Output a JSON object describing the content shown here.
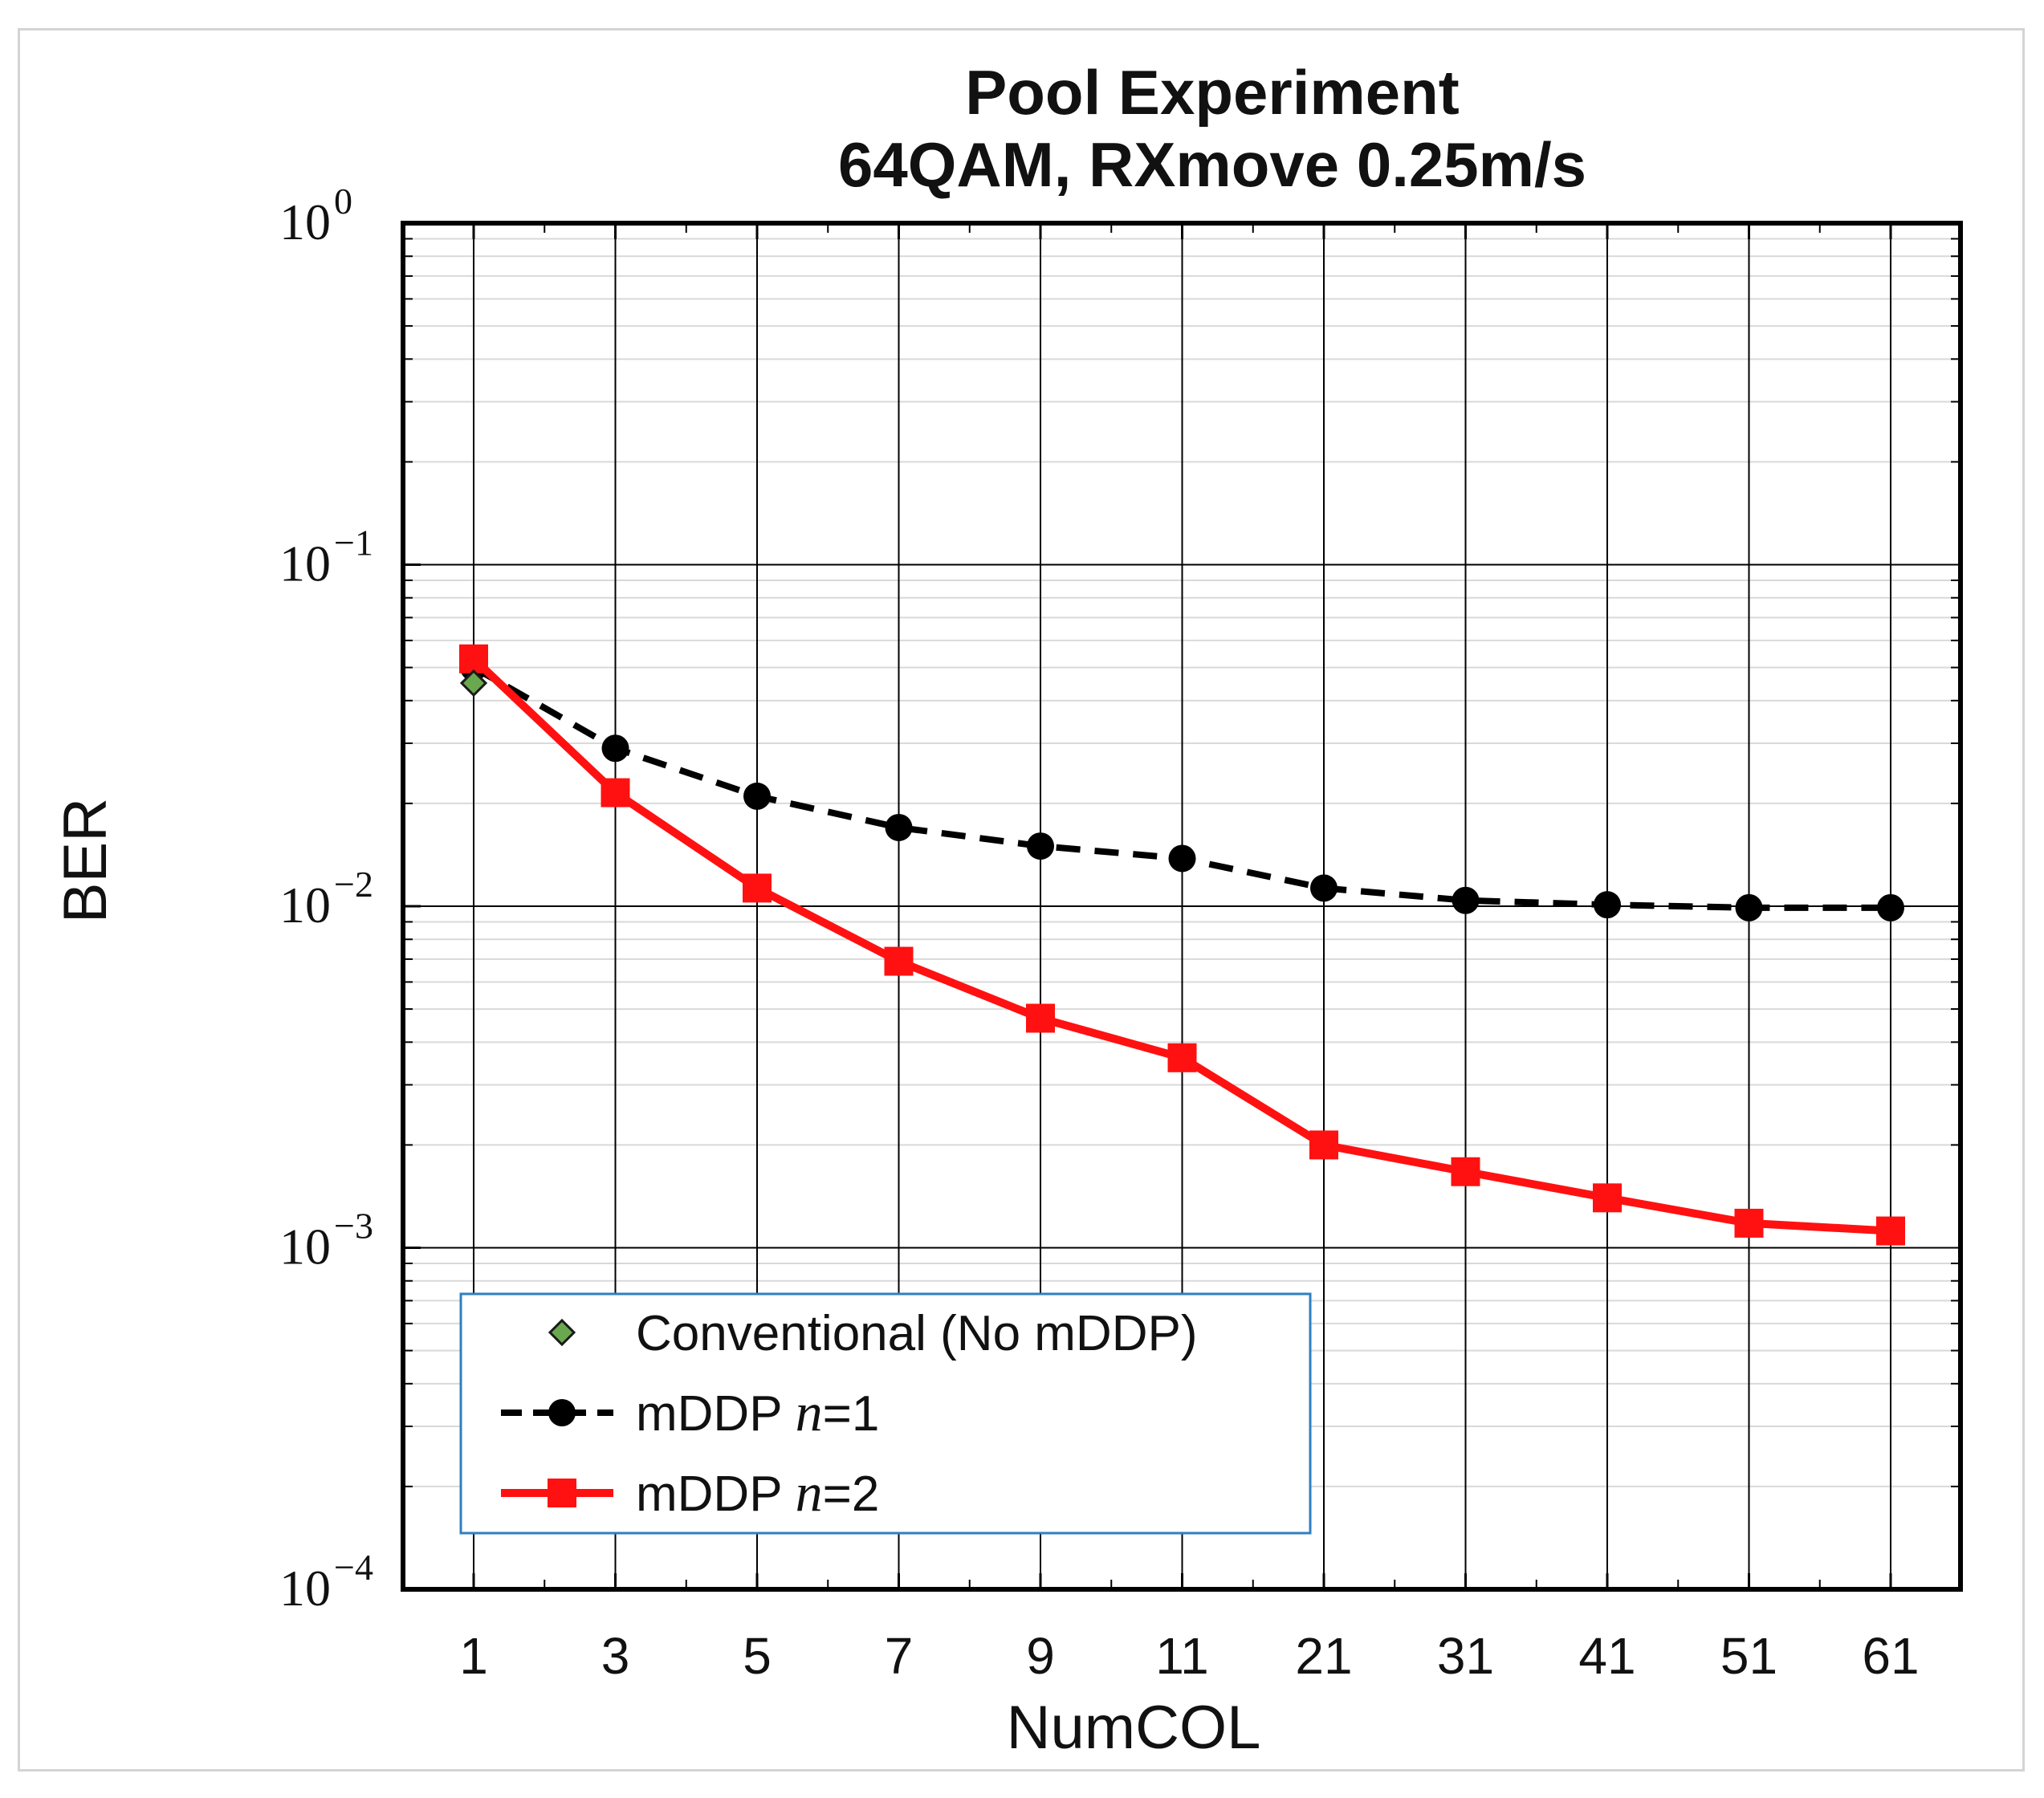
{
  "chart_data": {
    "type": "line",
    "title_lines": [
      "Pool Experiment",
      "64QAM, RXmove 0.25m/s"
    ],
    "xlabel": "NumCOL",
    "ylabel": "BER",
    "yscale": "log",
    "ylim": [
      0.0001,
      1
    ],
    "grid": true,
    "categories": [
      "1",
      "3",
      "5",
      "7",
      "9",
      "11",
      "21",
      "31",
      "41",
      "51",
      "61"
    ],
    "yticks": [
      {
        "base": "10",
        "exp": "0",
        "value": 1
      },
      {
        "base": "10",
        "exp": "−1",
        "value": 0.1
      },
      {
        "base": "10",
        "exp": "−2",
        "value": 0.01
      },
      {
        "base": "10",
        "exp": "−3",
        "value": 0.001
      },
      {
        "base": "10",
        "exp": "−4",
        "value": 0.0001
      }
    ],
    "legend_position": "lower-left",
    "series": [
      {
        "name": "Conventional (No mDDP)",
        "label_parts": [
          "Conventional (No mDDP)"
        ],
        "marker": "diamond",
        "line": "none",
        "color": "#6aa84f",
        "values": [
          0.045,
          null,
          null,
          null,
          null,
          null,
          null,
          null,
          null,
          null,
          null
        ]
      },
      {
        "name": "mDDP n=1",
        "label_parts": [
          "mDDP ",
          "n",
          "=1"
        ],
        "marker": "circle",
        "line": "dashed",
        "color": "#000000",
        "values": [
          0.05,
          0.029,
          0.021,
          0.017,
          0.015,
          0.0138,
          0.0113,
          0.0104,
          0.0101,
          0.0099,
          0.0099
        ]
      },
      {
        "name": "mDDP n=2",
        "label_parts": [
          "mDDP ",
          "n",
          "=2"
        ],
        "marker": "square",
        "line": "solid",
        "color": "#ff1111",
        "values": [
          0.053,
          0.0215,
          0.0113,
          0.0069,
          0.0047,
          0.0036,
          0.002,
          0.00167,
          0.0014,
          0.00118,
          0.00112
        ]
      }
    ]
  }
}
